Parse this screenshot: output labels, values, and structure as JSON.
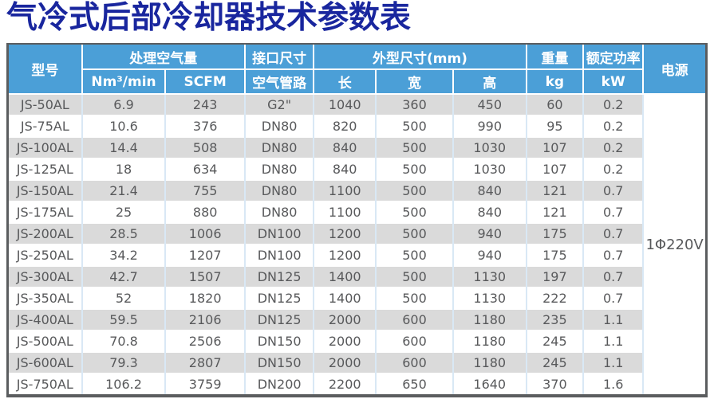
{
  "page": {
    "title": "气冷式后部冷却器技术参数表"
  },
  "colors": {
    "title_text": "#19269e",
    "header_bg": "#4b9fd7",
    "header_text": "#ffffff",
    "row_stripe_bg": "#dadada",
    "row_plain_bg": "#ffffff",
    "cell_text": "#58595b",
    "vertical_divider": "#d9e8f5",
    "horizontal_divider": "#ffffff",
    "outer_border": "#5b5d5f"
  },
  "table": {
    "header": {
      "model": "型号",
      "air_flow_group": "处理空气量",
      "air_flow_units": [
        "Nm³/min",
        "SCFM"
      ],
      "interface_group": "接口尺寸",
      "interface_sub": "空气管路",
      "dimensions_group": "外型尺寸(mm)",
      "dimensions_sub": [
        "长",
        "宽",
        "高"
      ],
      "weight_group": "重量",
      "weight_unit": "kg",
      "rated_power_group": "额定功率",
      "rated_power_unit": "kW",
      "power_supply": "电源"
    },
    "power_supply_value": "1Φ220V",
    "rows": [
      {
        "model": "JS-50AL",
        "nm3_min": "6.9",
        "scfm": "243",
        "pipe": "G2\"",
        "length": "1040",
        "width": "360",
        "height": "450",
        "weight_kg": "60",
        "power_kw": "0.2"
      },
      {
        "model": "JS-75AL",
        "nm3_min": "10.6",
        "scfm": "376",
        "pipe": "DN80",
        "length": "820",
        "width": "500",
        "height": "990",
        "weight_kg": "95",
        "power_kw": "0.2"
      },
      {
        "model": "JS-100AL",
        "nm3_min": "14.4",
        "scfm": "508",
        "pipe": "DN80",
        "length": "840",
        "width": "500",
        "height": "1030",
        "weight_kg": "107",
        "power_kw": "0.2"
      },
      {
        "model": "JS-125AL",
        "nm3_min": "18",
        "scfm": "634",
        "pipe": "DN80",
        "length": "840",
        "width": "500",
        "height": "1030",
        "weight_kg": "107",
        "power_kw": "0.2"
      },
      {
        "model": "JS-150AL",
        "nm3_min": "21.4",
        "scfm": "755",
        "pipe": "DN80",
        "length": "1100",
        "width": "500",
        "height": "840",
        "weight_kg": "121",
        "power_kw": "0.7"
      },
      {
        "model": "JS-175AL",
        "nm3_min": "25",
        "scfm": "880",
        "pipe": "DN80",
        "length": "1100",
        "width": "500",
        "height": "840",
        "weight_kg": "121",
        "power_kw": "0.7"
      },
      {
        "model": "JS-200AL",
        "nm3_min": "28.5",
        "scfm": "1006",
        "pipe": "DN100",
        "length": "1200",
        "width": "500",
        "height": "940",
        "weight_kg": "175",
        "power_kw": "0.7"
      },
      {
        "model": "JS-250AL",
        "nm3_min": "34.2",
        "scfm": "1207",
        "pipe": "DN100",
        "length": "1200",
        "width": "500",
        "height": "940",
        "weight_kg": "175",
        "power_kw": "0.7"
      },
      {
        "model": "JS-300AL",
        "nm3_min": "42.7",
        "scfm": "1507",
        "pipe": "DN125",
        "length": "1400",
        "width": "500",
        "height": "1130",
        "weight_kg": "197",
        "power_kw": "0.7"
      },
      {
        "model": "JS-350AL",
        "nm3_min": "52",
        "scfm": "1820",
        "pipe": "DN125",
        "length": "1400",
        "width": "500",
        "height": "1130",
        "weight_kg": "222",
        "power_kw": "0.7"
      },
      {
        "model": "JS-400AL",
        "nm3_min": "59.5",
        "scfm": "2106",
        "pipe": "DN125",
        "length": "2000",
        "width": "600",
        "height": "1180",
        "weight_kg": "235",
        "power_kw": "1.1"
      },
      {
        "model": "JS-500AL",
        "nm3_min": "70.8",
        "scfm": "2506",
        "pipe": "DN150",
        "length": "2000",
        "width": "600",
        "height": "1180",
        "weight_kg": "245",
        "power_kw": "1.1"
      },
      {
        "model": "JS-600AL",
        "nm3_min": "79.3",
        "scfm": "2807",
        "pipe": "DN150",
        "length": "2000",
        "width": "600",
        "height": "1180",
        "weight_kg": "245",
        "power_kw": "1.1"
      },
      {
        "model": "JS-750AL",
        "nm3_min": "106.2",
        "scfm": "3759",
        "pipe": "DN200",
        "length": "2200",
        "width": "650",
        "height": "1640",
        "weight_kg": "370",
        "power_kw": "1.6"
      }
    ]
  }
}
